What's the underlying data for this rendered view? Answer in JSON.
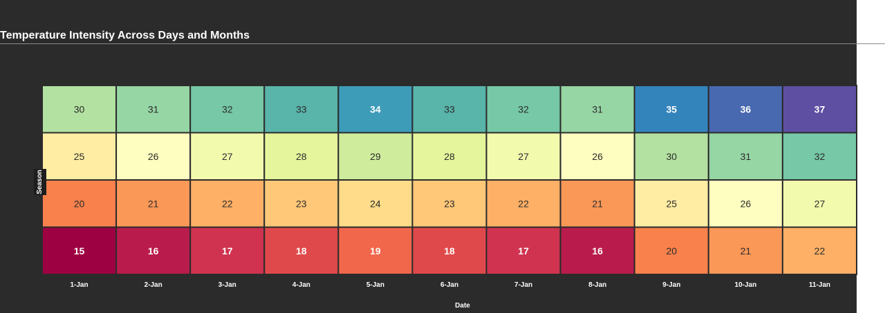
{
  "chart_data": {
    "type": "heatmap",
    "title": "Temperature Intensity Across Days and Months",
    "xlabel": "Date",
    "ylabel": "Season",
    "x": [
      "1-Jan",
      "2-Jan",
      "3-Jan",
      "4-Jan",
      "5-Jan",
      "6-Jan",
      "7-Jan",
      "8-Jan",
      "9-Jan",
      "10-Jan",
      "11-Jan"
    ],
    "values": [
      [
        30,
        31,
        32,
        33,
        34,
        33,
        32,
        31,
        35,
        36,
        37
      ],
      [
        25,
        26,
        27,
        28,
        29,
        28,
        27,
        26,
        30,
        31,
        32
      ],
      [
        20,
        21,
        22,
        23,
        24,
        23,
        22,
        21,
        25,
        26,
        27
      ],
      [
        15,
        16,
        17,
        18,
        19,
        18,
        17,
        16,
        20,
        21,
        22
      ]
    ],
    "colors": {
      "15": "#9e0142",
      "16": "#b91c4c",
      "17": "#cf3350",
      "18": "#e0494b",
      "19": "#f1674b",
      "20": "#f8814c",
      "21": "#fa9858",
      "22": "#fdb066",
      "23": "#fec878",
      "24": "#fedc8a",
      "25": "#feeda3",
      "26": "#fefec0",
      "27": "#f2faae",
      "28": "#e4f59b",
      "29": "#cfec9c",
      "30": "#b3e1a1",
      "31": "#96d5a4",
      "32": "#76c8a6",
      "33": "#59b4aa",
      "34": "#3d9cb8",
      "35": "#3484bc",
      "36": "#4869b0",
      "37": "#5e4fa2"
    },
    "legend": "none",
    "grid": false
  }
}
